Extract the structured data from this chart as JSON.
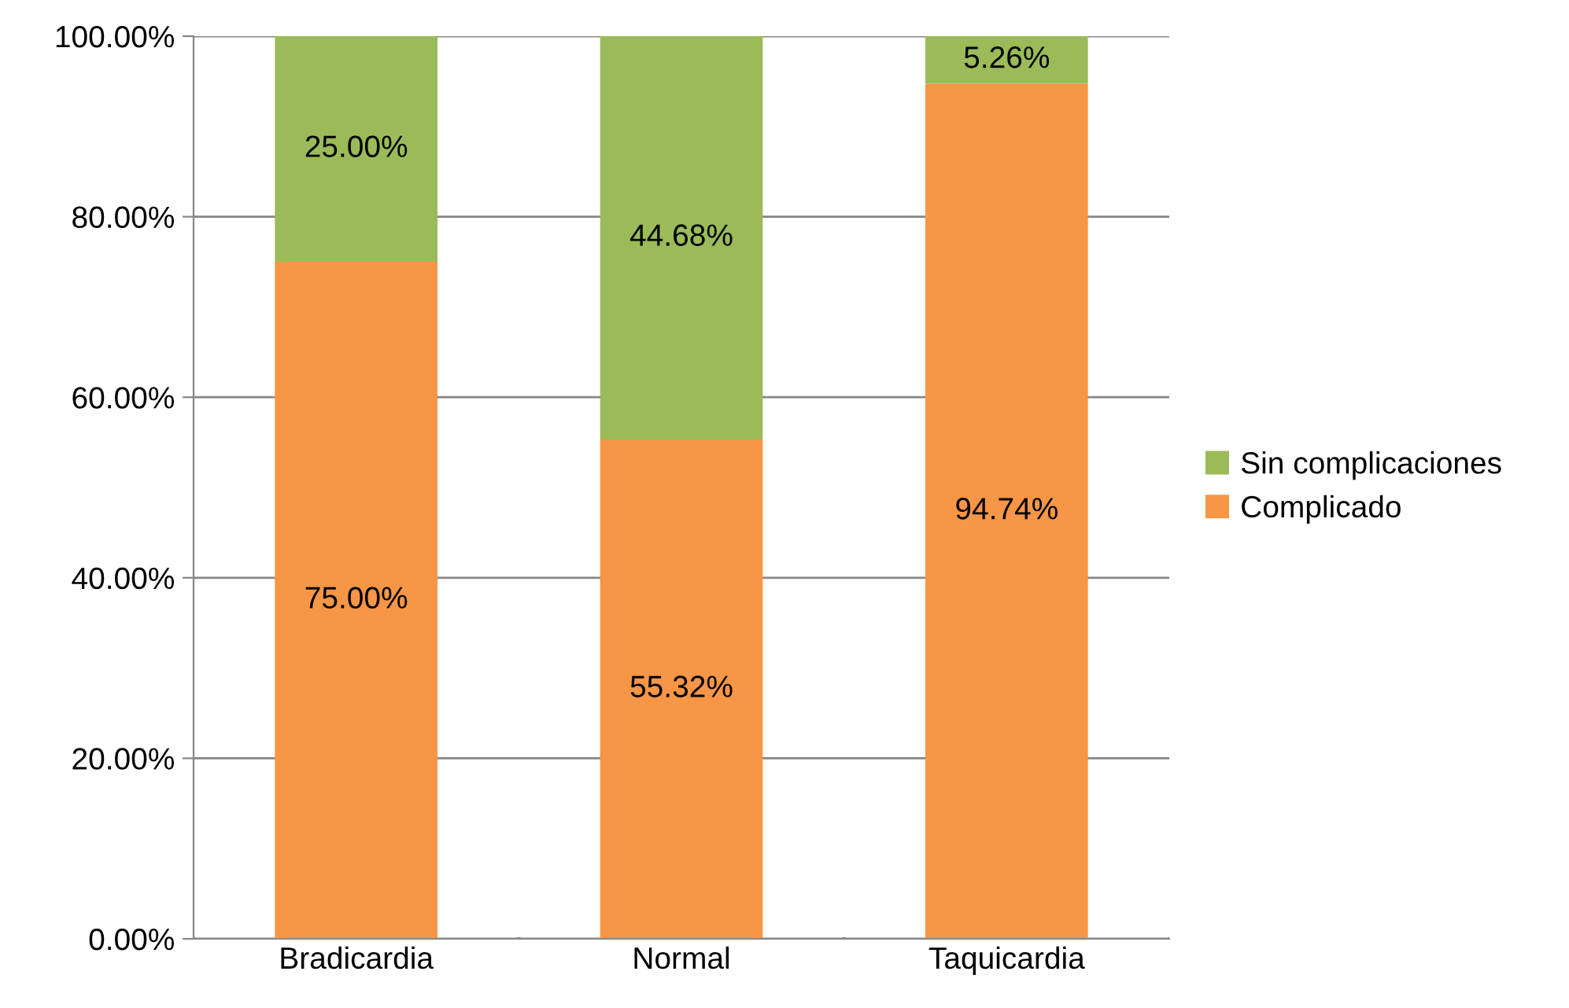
{
  "chart_data": {
    "type": "bar",
    "stacked": true,
    "categories": [
      "Bradicardia",
      "Normal",
      "Taquicardia"
    ],
    "series": [
      {
        "name": "Complicado",
        "color": "#f79646",
        "values": [
          75.0,
          55.32,
          94.74
        ],
        "value_labels": [
          "75.00%",
          "55.32%",
          "94.74%"
        ]
      },
      {
        "name": "Sin complicaciones",
        "color": "#9bbb59",
        "values": [
          25.0,
          44.68,
          5.26
        ],
        "value_labels": [
          "25.00%",
          "44.68%",
          "5.26%"
        ]
      }
    ],
    "ylim": [
      0,
      100
    ],
    "yticks": [
      {
        "value": 0,
        "label": "0.00%"
      },
      {
        "value": 20,
        "label": "20.00%"
      },
      {
        "value": 40,
        "label": "40.00%"
      },
      {
        "value": 60,
        "label": "60.00%"
      },
      {
        "value": 80,
        "label": "80.00%"
      },
      {
        "value": 100,
        "label": "100.00%"
      }
    ],
    "grid": "y",
    "legend": "right"
  }
}
